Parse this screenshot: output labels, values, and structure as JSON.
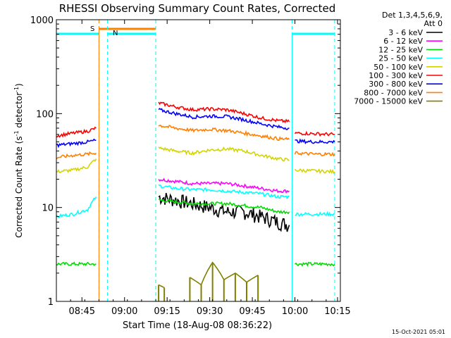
{
  "chart_data": {
    "type": "line",
    "title": "RHESSI Observing Summary Count Rates, Corrected",
    "xlabel": "Start Time (18-Aug-08 08:36:22)",
    "ylabel_main": "Corrected Count Rate (s",
    "ylabel_sup1": "-1",
    "ylabel_mid": " detector",
    "ylabel_sup2": "-1",
    "ylabel_end": ")",
    "yscale": "log",
    "ylim": [
      1,
      1000
    ],
    "xlim_minutes": [
      "08:36",
      "10:16"
    ],
    "x_ticks": [
      "08:45",
      "09:00",
      "09:15",
      "09:30",
      "09:45",
      "10:00",
      "10:15"
    ],
    "y_ticks": [
      "1",
      "10",
      "100",
      "1000"
    ],
    "legend": {
      "header_line1": "Det 1,3,4,5,6,9,",
      "header_line2": "Att 0",
      "placement": "right",
      "entries": [
        {
          "label": "3 - 6 keV",
          "color": "#000000"
        },
        {
          "label": "6 - 12 keV",
          "color": "#ff00ff"
        },
        {
          "label": "12 - 25 keV",
          "color": "#00dd00"
        },
        {
          "label": "25 - 50 keV",
          "color": "#00ffff"
        },
        {
          "label": "50 - 100 keV",
          "color": "#d4d400"
        },
        {
          "label": "100 - 300 keV",
          "color": "#ff0000"
        },
        {
          "label": "300 - 800 keV",
          "color": "#0000ff"
        },
        {
          "label": "800 - 7000 keV",
          "color": "#ff8000"
        },
        {
          "label": "7000 - 15000 keV",
          "color": "#808000"
        }
      ]
    },
    "annotations": {
      "saa_label": "S",
      "night_label": "N",
      "timestamp": "15-Oct-2021 05:01"
    },
    "observing_intervals": [
      {
        "flag": "S",
        "color": "#ff8000",
        "style": "dashed",
        "start": "08:51",
        "end": "09:11"
      },
      {
        "flag": "N",
        "color": "#00ffff",
        "style": "dashed",
        "start": "08:54",
        "end": "09:11"
      },
      {
        "flag": "N",
        "color": "#00ffff",
        "style": "dashed",
        "start": "09:59",
        "end": "10:14"
      }
    ],
    "series": [
      {
        "name": "3 - 6 keV",
        "color": "#000000",
        "segments": [
          {
            "x": [
              "09:12",
              "09:18",
              "09:24",
              "09:30",
              "09:36",
              "09:42",
              "09:48",
              "09:54",
              "09:58"
            ],
            "y": [
              13,
              12,
              11,
              10,
              9,
              9,
              8,
              7,
              6.5
            ]
          }
        ]
      },
      {
        "name": "6 - 12 keV",
        "color": "#ff00ff",
        "segments": [
          {
            "x": [
              "09:12",
              "09:18",
              "09:24",
              "09:30",
              "09:36",
              "09:42",
              "09:48",
              "09:54",
              "09:58"
            ],
            "y": [
              20,
              19,
              18,
              18,
              18,
              17,
              16,
              15,
              15
            ]
          }
        ]
      },
      {
        "name": "12 - 25 keV",
        "color": "#00dd00",
        "segments": [
          {
            "x": [
              "08:36",
              "08:43",
              "08:50"
            ],
            "y": [
              2.5,
              2.5,
              2.5
            ]
          },
          {
            "x": [
              "09:12",
              "09:18",
              "09:24",
              "09:30",
              "09:36",
              "09:42",
              "09:48",
              "09:54",
              "09:58"
            ],
            "y": [
              12,
              11.5,
              11,
              11,
              11,
              10.5,
              10,
              9,
              9
            ]
          },
          {
            "x": [
              "10:00",
              "10:07",
              "10:14"
            ],
            "y": [
              2.5,
              2.5,
              2.5
            ]
          }
        ]
      },
      {
        "name": "25 - 50 keV",
        "color": "#00ffff",
        "segments": [
          {
            "x": [
              "08:36",
              "08:42",
              "08:47",
              "08:50"
            ],
            "y": [
              8,
              8.5,
              9.5,
              13
            ]
          },
          {
            "x": [
              "09:12",
              "09:18",
              "09:24",
              "09:30",
              "09:36",
              "09:42",
              "09:48",
              "09:54",
              "09:58"
            ],
            "y": [
              17,
              16,
              15.5,
              15.5,
              15,
              14.5,
              14,
              13,
              13
            ]
          },
          {
            "x": [
              "10:00",
              "10:07",
              "10:14"
            ],
            "y": [
              8.5,
              8.5,
              8.5
            ]
          }
        ]
      },
      {
        "name": "50 - 100 keV",
        "color": "#d4d400",
        "segments": [
          {
            "x": [
              "08:36",
              "08:42",
              "08:47",
              "08:50"
            ],
            "y": [
              24,
              25,
              27,
              33
            ]
          },
          {
            "x": [
              "09:12",
              "09:18",
              "09:24",
              "09:30",
              "09:36",
              "09:42",
              "09:48",
              "09:54",
              "09:58"
            ],
            "y": [
              43,
              40,
              38,
              41,
              42,
              40,
              36,
              33,
              32
            ]
          },
          {
            "x": [
              "10:00",
              "10:07",
              "10:14"
            ],
            "y": [
              25,
              24.5,
              24
            ]
          }
        ]
      },
      {
        "name": "100 - 300 keV",
        "color": "#ff0000",
        "segments": [
          {
            "x": [
              "08:36",
              "08:42",
              "08:47",
              "08:50"
            ],
            "y": [
              58,
              62,
              65,
              70
            ]
          },
          {
            "x": [
              "09:12",
              "09:18",
              "09:24",
              "09:30",
              "09:36",
              "09:42",
              "09:48",
              "09:54",
              "09:58"
            ],
            "y": [
              130,
              118,
              110,
              112,
              110,
              100,
              90,
              84,
              82
            ]
          },
          {
            "x": [
              "10:00",
              "10:07",
              "10:14"
            ],
            "y": [
              62,
              61,
              60
            ]
          }
        ]
      },
      {
        "name": "300 - 800 keV",
        "color": "#0000ff",
        "segments": [
          {
            "x": [
              "08:36",
              "08:42",
              "08:47",
              "08:50"
            ],
            "y": [
              46,
              48,
              50,
              52
            ]
          },
          {
            "x": [
              "09:12",
              "09:18",
              "09:24",
              "09:30",
              "09:36",
              "09:42",
              "09:48",
              "09:54",
              "09:58"
            ],
            "y": [
              110,
              100,
              92,
              94,
              93,
              86,
              78,
              72,
              70
            ]
          },
          {
            "x": [
              "10:00",
              "10:07",
              "10:14"
            ],
            "y": [
              51,
              50,
              50
            ]
          }
        ]
      },
      {
        "name": "800 - 7000 keV",
        "color": "#ff8000",
        "segments": [
          {
            "x": [
              "08:36",
              "08:42",
              "08:47",
              "08:50"
            ],
            "y": [
              34,
              36,
              37,
              38
            ]
          },
          {
            "x": [
              "09:12",
              "09:18",
              "09:24",
              "09:30",
              "09:36",
              "09:42",
              "09:48",
              "09:54",
              "09:58"
            ],
            "y": [
              75,
              70,
              66,
              68,
              66,
              62,
              58,
              54,
              53
            ]
          },
          {
            "x": [
              "10:00",
              "10:07",
              "10:14"
            ],
            "y": [
              38,
              37,
              37
            ]
          }
        ]
      },
      {
        "name": "7000 - 15000 keV",
        "color": "#808000",
        "segments": [
          {
            "x": [
              "09:12",
              "09:14"
            ],
            "y": [
              1.5,
              1.4
            ]
          },
          {
            "x": [
              "09:23",
              "09:27",
              "09:31",
              "09:35",
              "09:39",
              "09:43",
              "09:47"
            ],
            "y": [
              1.8,
              1.5,
              2.6,
              1.7,
              2.0,
              1.6,
              1.9
            ]
          }
        ]
      }
    ]
  }
}
